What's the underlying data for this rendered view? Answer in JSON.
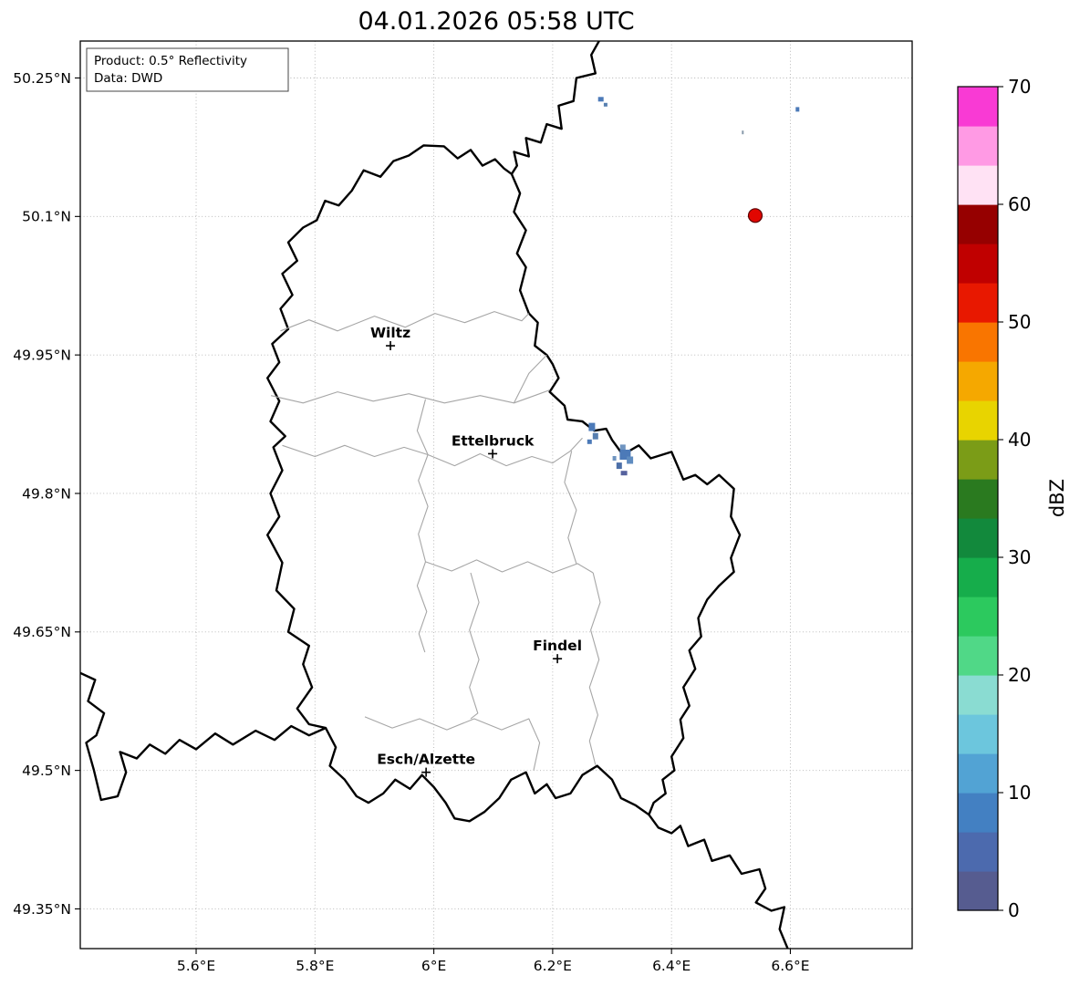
{
  "title": "04.01.2026 05:58 UTC",
  "info_box": {
    "line1": "Product: 0.5° Reflectivity",
    "line2": "Data: DWD"
  },
  "map": {
    "lon_min": 5.405,
    "lon_max": 6.805,
    "lat_min": 49.307,
    "lat_max": 50.29,
    "x_axis": {
      "ticks": [
        {
          "label": "5.6°E",
          "lon": 5.6
        },
        {
          "label": "5.8°E",
          "lon": 5.8
        },
        {
          "label": "6°E",
          "lon": 6.0
        },
        {
          "label": "6.2°E",
          "lon": 6.2
        },
        {
          "label": "6.4°E",
          "lon": 6.4
        },
        {
          "label": "6.6°E",
          "lon": 6.6
        }
      ]
    },
    "y_axis": {
      "ticks": [
        {
          "label": "50.25°N",
          "lat": 50.25
        },
        {
          "label": "50.1°N",
          "lat": 50.1
        },
        {
          "label": "49.95°N",
          "lat": 49.95
        },
        {
          "label": "49.8°N",
          "lat": 49.8
        },
        {
          "label": "49.65°N",
          "lat": 49.65
        },
        {
          "label": "49.5°N",
          "lat": 49.5
        },
        {
          "label": "49.35°N",
          "lat": 49.35
        }
      ]
    },
    "cities": [
      {
        "name": "Wiltz",
        "lon": 5.927,
        "lat": 49.96
      },
      {
        "name": "Ettelbruck",
        "lon": 6.099,
        "lat": 49.843
      },
      {
        "name": "Findel",
        "lon": 6.208,
        "lat": 49.621
      },
      {
        "name": "Esch/Alzette",
        "lon": 5.987,
        "lat": 49.498
      }
    ],
    "radar_site": {
      "lon": 6.541,
      "lat": 50.101,
      "radius": 7.5,
      "fill": "#e10600",
      "stroke": "#5a0000"
    },
    "echoes": [
      {
        "lon": 6.266,
        "lat": 49.872,
        "w": 7,
        "h": 9,
        "color": "#4c7ab8"
      },
      {
        "lon": 6.272,
        "lat": 49.862,
        "w": 6,
        "h": 7,
        "color": "#577fb0"
      },
      {
        "lon": 6.262,
        "lat": 49.856,
        "w": 5,
        "h": 5,
        "color": "#4c7ab8"
      },
      {
        "lon": 6.318,
        "lat": 49.85,
        "w": 6,
        "h": 6,
        "color": "#6f94c0"
      },
      {
        "lon": 6.322,
        "lat": 49.842,
        "w": 12,
        "h": 11,
        "color": "#4c7ab8"
      },
      {
        "lon": 6.33,
        "lat": 49.836,
        "w": 7,
        "h": 8,
        "color": "#5f8cc0"
      },
      {
        "lon": 6.312,
        "lat": 49.83,
        "w": 6,
        "h": 7,
        "color": "#4c6fa8"
      },
      {
        "lon": 6.32,
        "lat": 49.822,
        "w": 7,
        "h": 5,
        "color": "#56629e"
      },
      {
        "lon": 6.304,
        "lat": 49.838,
        "w": 4,
        "h": 5,
        "color": "#6f94c0"
      },
      {
        "lon": 6.281,
        "lat": 50.227,
        "w": 6,
        "h": 5,
        "color": "#4c7ab8"
      },
      {
        "lon": 6.289,
        "lat": 50.221,
        "w": 4,
        "h": 4,
        "color": "#577fb0"
      },
      {
        "lon": 6.612,
        "lat": 50.216,
        "w": 4,
        "h": 5,
        "color": "#4c7ab8"
      },
      {
        "lon": 6.52,
        "lat": 50.191,
        "w": 2,
        "h": 4,
        "color": "#8899aa"
      }
    ]
  },
  "colorbar": {
    "label": "dBZ",
    "min": 0,
    "max": 70,
    "ticks": [
      0,
      10,
      20,
      30,
      40,
      50,
      60,
      70
    ],
    "colors": [
      "#565c90",
      "#4c6aae",
      "#4380c2",
      "#52a3d4",
      "#6cc6dd",
      "#8adcd2",
      "#50d887",
      "#2cc95e",
      "#16ad4b",
      "#12893c",
      "#2a7a1f",
      "#7b9c17",
      "#e8d400",
      "#f5a800",
      "#f97500",
      "#e81800",
      "#c00000",
      "#960000",
      "#ffe2f4",
      "#ff9ae4",
      "#f93ad4"
    ]
  }
}
